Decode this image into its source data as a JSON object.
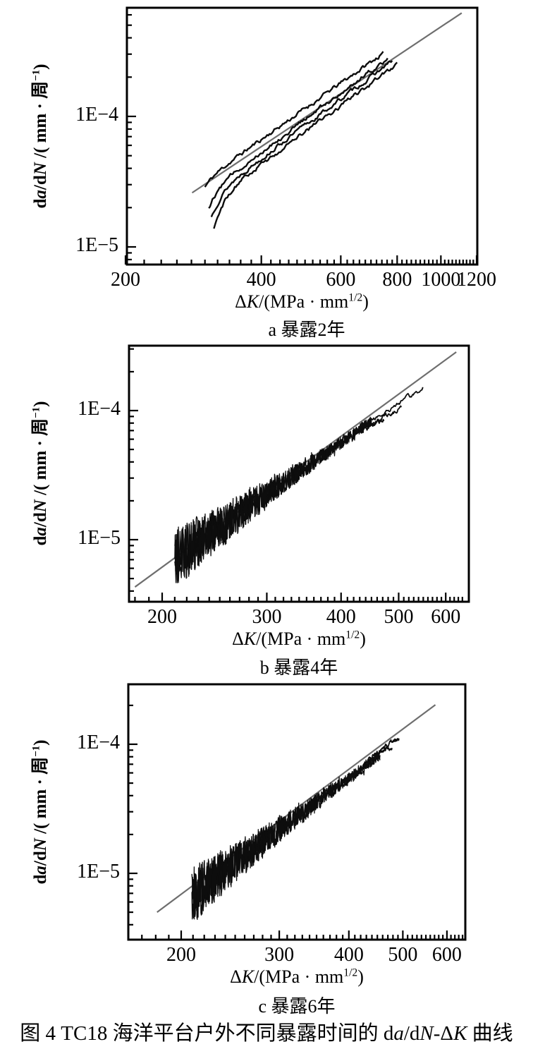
{
  "figure": {
    "caption_text": "图 4  TC18 海洋平台户外不同暴露时间的 da/dN-ΔK 曲线",
    "caption_parts": [
      {
        "t": "图 4  TC18 海洋平台户外不同暴露时间的 d"
      },
      {
        "t": "a",
        "i": true
      },
      {
        "t": "/d"
      },
      {
        "t": "N",
        "i": true
      },
      {
        "t": "-Δ"
      },
      {
        "t": "K",
        "i": true
      },
      {
        "t": " 曲线"
      }
    ],
    "xlabel_parts": [
      {
        "t": "Δ"
      },
      {
        "t": "K",
        "i": true
      },
      {
        "t": "/(MPa · mm"
      },
      {
        "t": "1/2",
        "sup": true
      },
      {
        "t": ")"
      }
    ],
    "ylabel_parts": [
      {
        "t": "d"
      },
      {
        "t": "a",
        "i": true
      },
      {
        "t": "/d"
      },
      {
        "t": "N",
        "i": true
      },
      {
        "t": " /( mm · 周"
      },
      {
        "t": "−1",
        "sup": true
      },
      {
        "t": ")"
      }
    ]
  },
  "colors": {
    "curve": "#0d0d0d",
    "fit_line": "#6e6e6e",
    "frame": "#000000",
    "background": "#ffffff"
  },
  "chart_data": [
    {
      "id": "a",
      "type": "line",
      "caption": "a 暴露2年",
      "xlabel": "ΔK/(MPa·mm^1/2)",
      "ylabel": "da/dN/(mm·周^-1)",
      "x_axis": {
        "scale": "log",
        "min": 200,
        "max": 1210,
        "ticks": [
          {
            "v": 200,
            "label": "200"
          },
          {
            "v": 400,
            "label": "400"
          },
          {
            "v": 600,
            "label": "600"
          },
          {
            "v": 800,
            "label": "800"
          },
          {
            "v": 1000,
            "label": "1000"
          },
          {
            "v": 1200,
            "label": "1200"
          }
        ],
        "minor": {
          "step": 20,
          "from": 220,
          "to": 1180
        }
      },
      "y_axis": {
        "scale": "log",
        "min": 7.3e-06,
        "max": 0.00068,
        "ticks": [
          {
            "v": 1e-05,
            "label": "1E−5"
          },
          {
            "v": 0.0001,
            "label": "1E−4"
          }
        ]
      },
      "fit_line": {
        "x": [
          281,
          1112
        ],
        "y": [
          2.6e-05,
          0.00062
        ]
      },
      "series": [
        {
          "name": "curve-1",
          "x": [
            300,
            745
          ],
          "y": [
            3.3e-05,
            0.000305
          ],
          "hook_depth": 0.06,
          "wiggle": 0.02,
          "seed": 11
        },
        {
          "name": "curve-2",
          "x": [
            306,
            762
          ],
          "y": [
            2.7e-05,
            0.00028
          ],
          "hook_depth": 0.13,
          "wiggle": 0.02,
          "seed": 12
        },
        {
          "name": "curve-3",
          "x": [
            310,
            780
          ],
          "y": [
            2.5e-05,
            0.000265
          ],
          "hook_depth": 0.17,
          "wiggle": 0.02,
          "seed": 13
        },
        {
          "name": "curve-4",
          "x": [
            314,
            800
          ],
          "y": [
            2.35e-05,
            0.00025
          ],
          "hook_depth": 0.23,
          "wiggle": 0.02,
          "seed": 14
        }
      ]
    },
    {
      "id": "b",
      "type": "line",
      "caption": "b 暴露4年",
      "xlabel": "ΔK/(MPa·mm^1/2)",
      "ylabel": "da/dN/(mm·周^-1)",
      "x_axis": {
        "scale": "log",
        "min": 176,
        "max": 656,
        "ticks": [
          {
            "v": 200,
            "label": "200"
          },
          {
            "v": 300,
            "label": "300"
          },
          {
            "v": 400,
            "label": "400"
          },
          {
            "v": 500,
            "label": "500"
          },
          {
            "v": 600,
            "label": "600"
          }
        ],
        "minor": {
          "step": 10,
          "from": 180,
          "to": 640
        }
      },
      "y_axis": {
        "scale": "log",
        "min": 3.3e-06,
        "max": 0.00032,
        "ticks": [
          {
            "v": 1e-05,
            "label": "1E−5"
          },
          {
            "v": 0.0001,
            "label": "1E−4"
          }
        ]
      },
      "fit_line": {
        "x": [
          180,
          625
        ],
        "y": [
          4.3e-06,
          0.000284
        ]
      },
      "band": {
        "x": [
          210,
          450
        ],
        "y": [
          7.2e-06,
          8.2e-05
        ],
        "amp": [
          0.2,
          0.035
        ],
        "layers": 3,
        "seed": 21
      },
      "tails": [
        {
          "x": [
            438,
            550
          ],
          "y": [
            7.7e-05,
            0.00015
          ]
        },
        {
          "x": [
            430,
            505
          ],
          "y": [
            7.2e-05,
            0.000103
          ]
        },
        {
          "x": [
            428,
            472
          ],
          "y": [
            6.9e-05,
            8.6e-05
          ]
        }
      ]
    },
    {
      "id": "c",
      "type": "line",
      "caption": "c 暴露6年",
      "xlabel": "ΔK/(MPa·mm^1/2)",
      "ylabel": "da/dN/(mm·周^-1)",
      "x_axis": {
        "scale": "log",
        "min": 161,
        "max": 647,
        "ticks": [
          {
            "v": 200,
            "label": "200"
          },
          {
            "v": 300,
            "label": "300"
          },
          {
            "v": 400,
            "label": "400"
          },
          {
            "v": 500,
            "label": "500"
          },
          {
            "v": 600,
            "label": "600"
          }
        ],
        "minor": {
          "step": 10,
          "from": 170,
          "to": 640
        }
      },
      "y_axis": {
        "scale": "log",
        "min": 3.05e-06,
        "max": 0.00029,
        "ticks": [
          {
            "v": 1e-05,
            "label": "1E−5"
          },
          {
            "v": 0.0001,
            "label": "1E−4"
          }
        ]
      },
      "fit_line": {
        "x": [
          181,
          572
        ],
        "y": [
          5e-06,
          0.000202
        ]
      },
      "band": {
        "x": [
          209,
          455
        ],
        "y": [
          6.8e-06,
          8.3e-05
        ],
        "amp": [
          0.19,
          0.03
        ],
        "layers": 3,
        "seed": 41
      },
      "tails": [
        {
          "x": [
            440,
            492
          ],
          "y": [
            8e-05,
            0.000112
          ]
        },
        {
          "x": [
            432,
            478
          ],
          "y": [
            7.5e-05,
            9.7e-05
          ]
        }
      ]
    }
  ]
}
